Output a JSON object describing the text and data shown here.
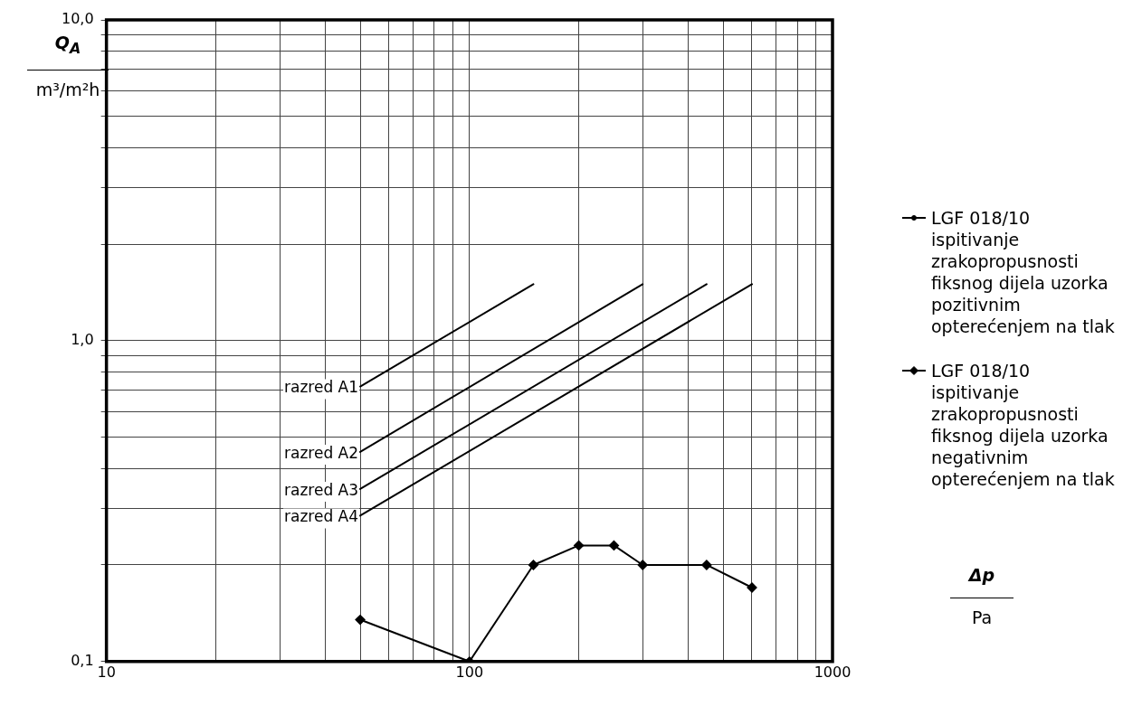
{
  "chart_data": {
    "type": "line",
    "xlabel": "Δp\nPa",
    "ylabel": "Q$_{A}$\nm³/m²h",
    "log": "xy",
    "grid": true,
    "legend": "right",
    "line_style": "solid",
    "xlim": [
      10,
      1000
    ],
    "ylim": [
      0.1,
      10
    ],
    "xticks": [
      10,
      {
        "value": 20,
        "label": null
      },
      {
        "value": 30,
        "label": null
      },
      {
        "value": 40,
        "label": null
      },
      {
        "value": 50,
        "label": null
      },
      {
        "value": 60,
        "label": null
      },
      {
        "value": 70,
        "label": null
      },
      {
        "value": 80,
        "label": null
      },
      {
        "value": 90,
        "label": null
      },
      100,
      {
        "value": 200,
        "label": null
      },
      {
        "value": 300,
        "label": null
      },
      {
        "value": 400,
        "label": null
      },
      {
        "value": 500,
        "label": null
      },
      {
        "value": 600,
        "label": null
      },
      {
        "value": 700,
        "label": null
      },
      {
        "value": 800,
        "label": null
      },
      {
        "value": 900,
        "label": null
      },
      1000
    ],
    "yticks": [
      {
        "value": 0.1,
        "label": "0,1"
      },
      {
        "value": 0.2,
        "label": null
      },
      {
        "value": 0.3,
        "label": null
      },
      {
        "value": 0.4,
        "label": null
      },
      {
        "value": 0.5,
        "label": null
      },
      {
        "value": 0.6,
        "label": null
      },
      {
        "value": 0.7,
        "label": null
      },
      {
        "value": 0.8,
        "label": null
      },
      {
        "value": 0.9,
        "label": null
      },
      {
        "value": 1,
        "label": "1,0"
      },
      {
        "value": 2,
        "label": null
      },
      {
        "value": 3,
        "label": null
      },
      {
        "value": 4,
        "label": null
      },
      {
        "value": 5,
        "label": null
      },
      {
        "value": 6,
        "label": null
      },
      {
        "value": 7,
        "label": null
      },
      {
        "value": 8,
        "label": null
      },
      {
        "value": 9,
        "label": null
      },
      {
        "value": 10,
        "label": "10,0"
      }
    ],
    "series": [
      {
        "name": "razred A1",
        "color": "#000000",
        "marker": "none",
        "x": [
          50,
          150
        ],
        "values": [
          0.72,
          1.5
        ]
      },
      {
        "name": "razred A2",
        "color": "#000000",
        "marker": "none",
        "x": [
          50,
          300
        ],
        "values": [
          0.45,
          1.5
        ]
      },
      {
        "name": "razred A3",
        "color": "#000000",
        "marker": "none",
        "x": [
          50,
          450
        ],
        "values": [
          0.345,
          1.5
        ]
      },
      {
        "name": "razred A4",
        "color": "#000000",
        "marker": "none",
        "x": [
          50,
          600
        ],
        "values": [
          0.285,
          1.5
        ]
      },
      {
        "name": "LGF 018/10   ispitivanje zrakopropusnosti fiksnog dijela uzorka pozitivnim opterećenjem na tlak",
        "color": "#000000",
        "marker": "circle"
      },
      {
        "name": "LGF 018/10 ispitivanje zrakopropusnosti fiksnog dijela uzorka negativnim opterećenjem na tlak",
        "color": "#000000",
        "marker": "diamond",
        "x": [
          50,
          100,
          150,
          200,
          250,
          300,
          450,
          600
        ],
        "values": [
          0.135,
          0.1,
          0.2,
          0.23,
          0.23,
          0.2,
          0.2,
          0.17
        ]
      }
    ]
  }
}
